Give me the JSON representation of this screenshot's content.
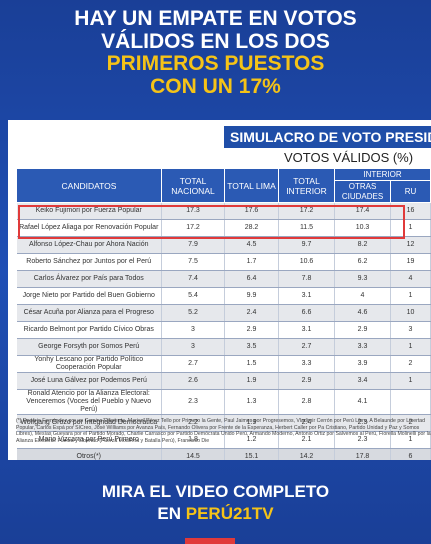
{
  "headline": {
    "line1": "HAY UN EMPATE EN VOTOS",
    "line2": "VÁLIDOS EN LOS DOS",
    "line3": "PRIMEROS PUESTOS",
    "line4": "CON UN 17%"
  },
  "card": {
    "simulacro_title": "SIMULACRO DE VOTO PRESID",
    "subtitle": "VOTOS VÁLIDOS (%)",
    "headers": {
      "candidatos": "CANDIDATOS",
      "total_nacional": "TOTAL NACIONAL",
      "total_lima": "TOTAL LIMA",
      "total_interior": "TOTAL INTERIOR",
      "interior_group": "INTERIOR",
      "otras_ciudades": "OTRAS CIUDADES",
      "rural": "RU"
    },
    "rows": [
      {
        "name": "Keiko Fujimori por Fuerza Popular",
        "nacional": "17.3",
        "lima": "17.6",
        "interior": "17.2",
        "otras": "17.4",
        "rural": "16"
      },
      {
        "name": "Rafael López Aliaga por Renovación Popular",
        "nacional": "17.2",
        "lima": "28.2",
        "interior": "11.5",
        "otras": "10.3",
        "rural": "1"
      },
      {
        "name": "Alfonso López-Chau por Ahora Nación",
        "nacional": "7.9",
        "lima": "4.5",
        "interior": "9.7",
        "otras": "8.2",
        "rural": "12"
      },
      {
        "name": "Roberto Sánchez por Juntos por el Perú",
        "nacional": "7.5",
        "lima": "1.7",
        "interior": "10.6",
        "otras": "6.2",
        "rural": "19"
      },
      {
        "name": "Carlos Álvarez por País para Todos",
        "nacional": "7.4",
        "lima": "6.4",
        "interior": "7.8",
        "otras": "9.3",
        "rural": "4"
      },
      {
        "name": "Jorge Nieto por Partido del Buen Gobierno",
        "nacional": "5.4",
        "lima": "9.9",
        "interior": "3.1",
        "otras": "4",
        "rural": "1"
      },
      {
        "name": "César Acuña por Alianza para el Progreso",
        "nacional": "5.2",
        "lima": "2.4",
        "interior": "6.6",
        "otras": "4.6",
        "rural": "10"
      },
      {
        "name": "Ricardo Belmont por Partido Cívico Obras",
        "nacional": "3",
        "lima": "2.9",
        "interior": "3.1",
        "otras": "2.9",
        "rural": "3"
      },
      {
        "name": "George Forsyth por Somos Perú",
        "nacional": "3",
        "lima": "3.5",
        "interior": "2.7",
        "otras": "3.3",
        "rural": "1"
      },
      {
        "name": "Yonhy Lescano por Partido Político Cooperación Popular",
        "nacional": "2.7",
        "lima": "1.5",
        "interior": "3.3",
        "otras": "3.9",
        "rural": "2"
      },
      {
        "name": "José Luna Gálvez por Podemos Perú",
        "nacional": "2.6",
        "lima": "1.9",
        "interior": "2.9",
        "otras": "3.4",
        "rural": "1"
      },
      {
        "name": "Ronald Atencio por la Alianza Electoral: Venceremos (Voces del Pueblo y Nuevo Perú)",
        "nacional": "2.3",
        "lima": "1.3",
        "interior": "2.8",
        "otras": "4.1",
        "rural": ""
      },
      {
        "name": "Wolfgang Grozo por Integridad Democrática",
        "nacional": "2.2",
        "lima": "1.9",
        "interior": "2.4",
        "otras": "2.3",
        "rural": "2"
      },
      {
        "name": "Mario Vizcarra por Perú Primero",
        "nacional": "1.8",
        "lima": "1.2",
        "interior": "2.1",
        "otras": "2.3",
        "rural": "1"
      },
      {
        "name": "Otros(*)",
        "nacional": "14.5",
        "lima": "15.1",
        "interior": "14.2",
        "otras": "17.8",
        "rural": "6"
      }
    ],
    "footnote": "(*) Rosario Fernández por un Camino Diferente, Marisol Pérez Tello por Primero la Gente, Paul Jaimes por Progresemos, Vladimir Cerrón por Perú Libre, A Belaunde por Libertad Popular, Carlos Espá por SíCreo, José Williams por Avanza País, Fernando Olivera por Frente de la Esperanza, Herbert Caller por Pa Cristiano, Partido Unidad y Paz y Somos Libres), Mesías Guevara por el Partido Morado, Charlie Carrasco por Partido Demócrata Unido Perú, Armando Moderno, Antonio Ortiz por Salvemos al Perú, Fiorella Molinelli por la Alianza Electoral: Fuerza y Libertad (Fuerza Moderna y Batalla Perú), Francisco Die"
  },
  "cta": {
    "line1": "MIRA EL VIDEO COMPLETO",
    "line2_prefix": "EN ",
    "line2_brand": "PERÚ21TV"
  },
  "colors": {
    "background": "#1f4fb5",
    "accent_yellow": "#f5c317",
    "header_blue": "#2b5ab4",
    "highlight_red": "#e03a3a"
  }
}
